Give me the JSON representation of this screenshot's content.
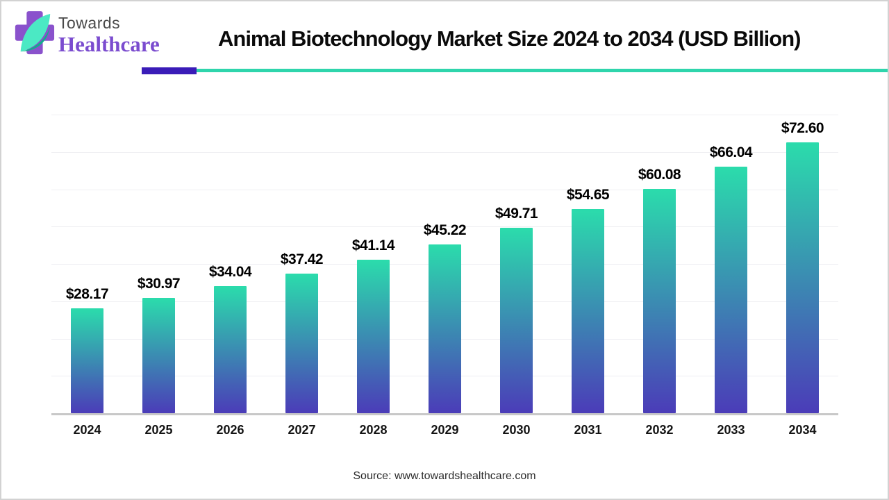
{
  "header": {
    "logo": {
      "line1": "Towards",
      "line2": "Healthcare"
    },
    "title": "Animal Biotechnology Market Size 2024 to 2034 (USD Billion)"
  },
  "chart_data": {
    "type": "bar",
    "title": "Animal Biotechnology Market Size 2024 to 2034 (USD Billion)",
    "categories": [
      "2024",
      "2025",
      "2026",
      "2027",
      "2028",
      "2029",
      "2030",
      "2031",
      "2032",
      "2033",
      "2034"
    ],
    "values": [
      28.17,
      30.97,
      34.04,
      37.42,
      41.14,
      45.22,
      49.71,
      54.65,
      60.08,
      66.04,
      72.6
    ],
    "label_prefix": "$",
    "unit": "USD Billion",
    "xlabel": "",
    "ylabel": "",
    "ylim": [
      0,
      80
    ],
    "gridline_step": 10,
    "grid": true,
    "legend": "none",
    "bar_color_top": "#2BDCAC",
    "bar_color_bottom": "#4B3CB8"
  },
  "footer": {
    "source": "Source: www.towardshealthcare.com"
  },
  "colors": {
    "accent_purple": "#3A1CB8",
    "accent_teal": "#2FD5AC",
    "logo_cross_purple": "#8A52CC",
    "logo_leaf_teal": "#4BE9C4",
    "logo_leaf_dark": "#12AB8D",
    "logo_text_gray": "#4A4A4A",
    "logo_text_purple": "#7B4CCF",
    "title_text": "#0A0A0A",
    "gridline": "#EEEEF2",
    "axis_line": "#C8C8C8"
  }
}
